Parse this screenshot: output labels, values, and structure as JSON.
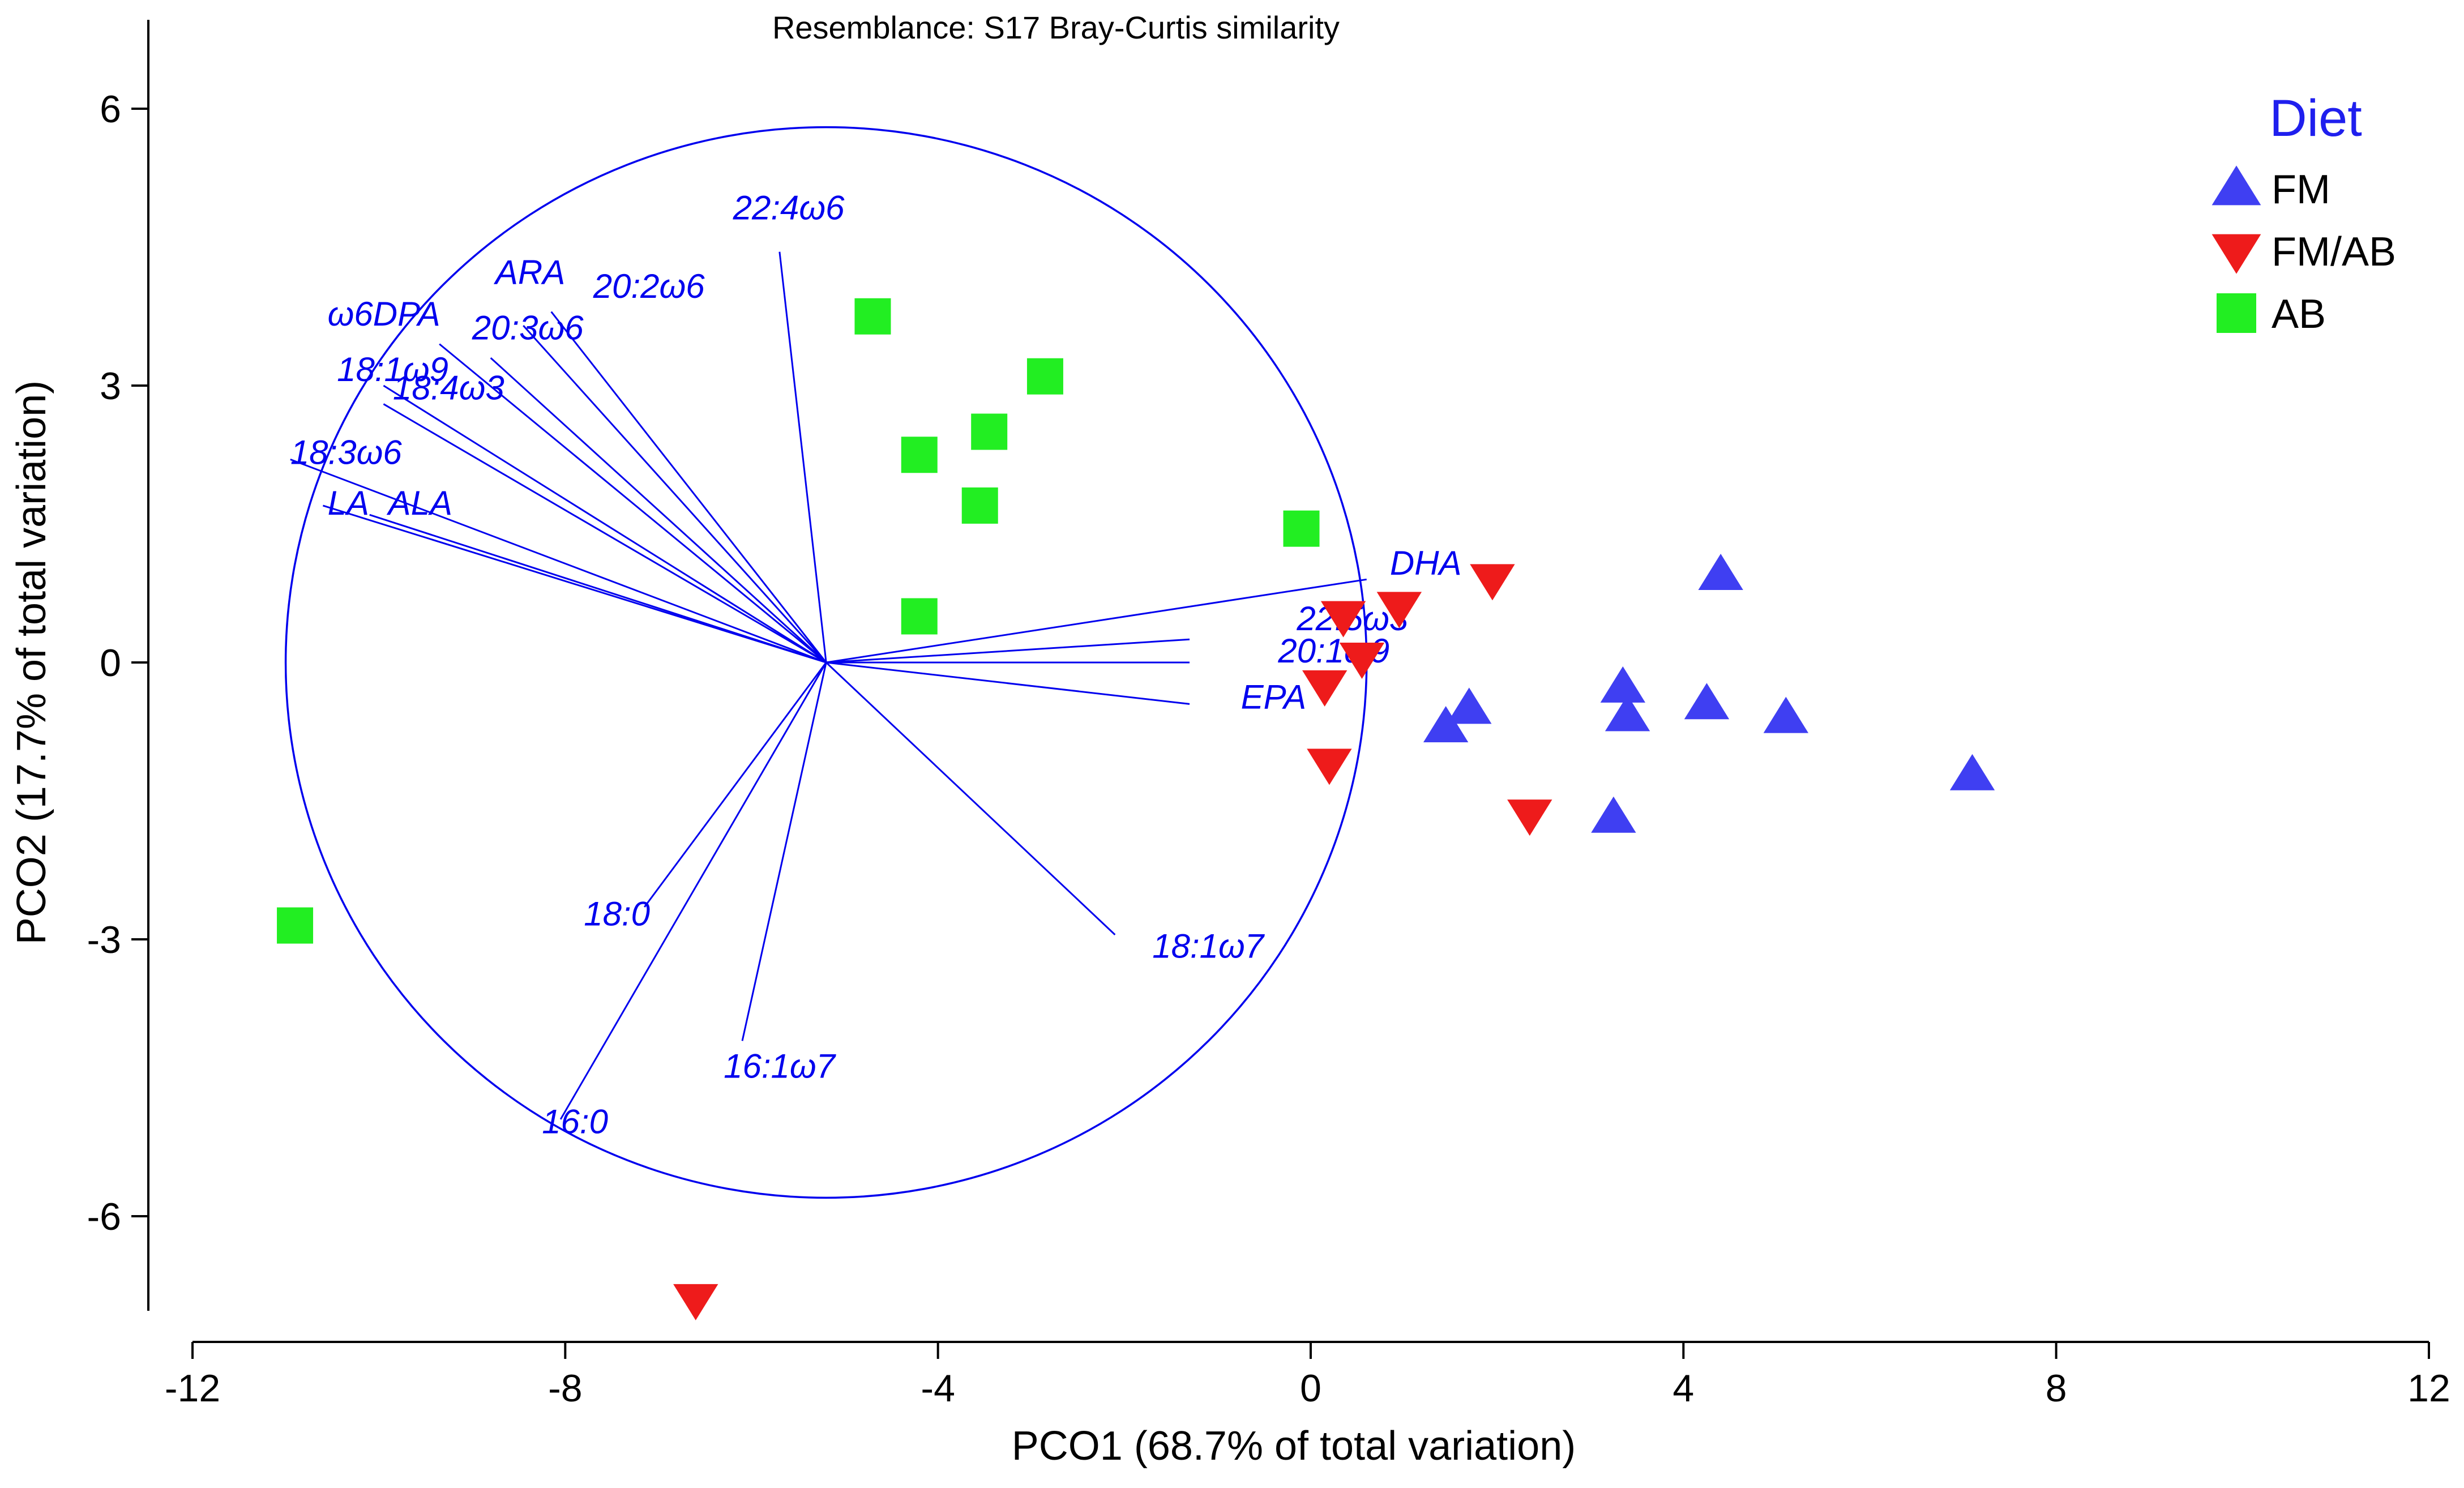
{
  "chart_data": {
    "type": "scatter",
    "title": "Resemblance: S17 Bray-Curtis similarity",
    "xlabel": "PCO1 (68.7% of total variation)",
    "ylabel": "PCO2 (17.7% of total variation)",
    "xlim": [
      -12,
      12
    ],
    "ylim": [
      -6.9,
      6.9
    ],
    "xticks": [
      -12,
      -8,
      -4,
      0,
      4,
      8,
      12
    ],
    "yticks": [
      -6,
      -3,
      0,
      3,
      6
    ],
    "grid": false,
    "legend": {
      "title": "Diet",
      "position": "top-right"
    },
    "colors": {
      "FM": "#3f3ff2",
      "FM/AB": "#ee1b1b",
      "AB": "#22ee22",
      "vectors": "#0000ee"
    },
    "series": [
      {
        "name": "FM",
        "marker": "triangle-up",
        "points": [
          [
            4.4,
            0.95
          ],
          [
            3.35,
            -0.27
          ],
          [
            3.4,
            -0.58
          ],
          [
            4.25,
            -0.45
          ],
          [
            5.1,
            -0.6
          ],
          [
            7.1,
            -1.22
          ],
          [
            3.25,
            -1.68
          ],
          [
            1.7,
            -0.5
          ],
          [
            1.45,
            -0.7
          ]
        ]
      },
      {
        "name": "FM/AB",
        "marker": "triangle-down",
        "points": [
          [
            1.95,
            0.9
          ],
          [
            0.95,
            0.6
          ],
          [
            0.35,
            0.5
          ],
          [
            0.55,
            0.05
          ],
          [
            0.15,
            -0.25
          ],
          [
            0.2,
            -1.1
          ],
          [
            2.35,
            -1.65
          ],
          [
            -6.6,
            -6.9
          ]
        ]
      },
      {
        "name": "AB",
        "marker": "square",
        "points": [
          [
            -4.7,
            3.75
          ],
          [
            -2.85,
            3.1
          ],
          [
            -3.45,
            2.5
          ],
          [
            -4.2,
            2.25
          ],
          [
            -3.55,
            1.7
          ],
          [
            -0.1,
            1.45
          ],
          [
            -4.2,
            0.5
          ],
          [
            -10.9,
            -2.85
          ]
        ]
      }
    ],
    "circle": {
      "center": [
        -5.2,
        0
      ],
      "radius": 5.8
    },
    "vectors": [
      {
        "label": "22:4ω6",
        "end": [
          -5.7,
          4.45
        ],
        "label_pos": [
          -6.2,
          4.8
        ]
      },
      {
        "label": "ARA",
        "end": [
          -8.45,
          3.65
        ],
        "label_pos": [
          -8.75,
          4.1
        ]
      },
      {
        "label": "20:2ω6",
        "end": [
          -8.15,
          3.8
        ],
        "label_pos": [
          -7.7,
          3.95
        ]
      },
      {
        "label": "ω6DPA",
        "end": [
          -9.35,
          3.45
        ],
        "label_pos": [
          -10.55,
          3.65
        ]
      },
      {
        "label": "20:3ω6",
        "end": [
          -8.8,
          3.3
        ],
        "label_pos": [
          -9.0,
          3.5
        ]
      },
      {
        "label": "18:1ω9",
        "end": [
          -9.95,
          3.0
        ],
        "label_pos": [
          -10.45,
          3.05
        ]
      },
      {
        "label": "18:4ω3",
        "end": [
          -9.95,
          2.8
        ],
        "label_pos": [
          -9.85,
          2.85
        ]
      },
      {
        "label": "18:3ω6",
        "end": [
          -10.95,
          2.2
        ],
        "label_pos": [
          -10.95,
          2.15
        ]
      },
      {
        "label": "LA",
        "end": [
          -10.6,
          1.7
        ],
        "label_pos": [
          -10.55,
          1.6
        ]
      },
      {
        "label": "ALA",
        "end": [
          -10.1,
          1.6
        ],
        "label_pos": [
          -9.9,
          1.6
        ]
      },
      {
        "label": "DHA",
        "end": [
          0.6,
          0.9
        ],
        "label_pos": [
          0.85,
          0.95
        ]
      },
      {
        "label": "22:5ω3",
        "end": [
          -1.3,
          0.25
        ],
        "label_pos": [
          -0.15,
          0.35
        ]
      },
      {
        "label": "20:1ω9",
        "end": [
          -1.3,
          0.0
        ],
        "label_pos": [
          -0.35,
          0.0
        ]
      },
      {
        "label": "EPA",
        "end": [
          -1.3,
          -0.45
        ],
        "label_pos": [
          -0.75,
          -0.5
        ]
      },
      {
        "label": "18:1ω7",
        "end": [
          -2.1,
          -2.95
        ],
        "label_pos": [
          -1.7,
          -3.2
        ]
      },
      {
        "label": "18:0",
        "end": [
          -7.15,
          -2.65
        ],
        "label_pos": [
          -7.8,
          -2.85
        ]
      },
      {
        "label": "16:1ω7",
        "end": [
          -6.1,
          -4.1
        ],
        "label_pos": [
          -6.3,
          -4.5
        ]
      },
      {
        "label": "16:0",
        "end": [
          -8.05,
          -4.95
        ],
        "label_pos": [
          -8.25,
          -5.1
        ]
      }
    ]
  }
}
